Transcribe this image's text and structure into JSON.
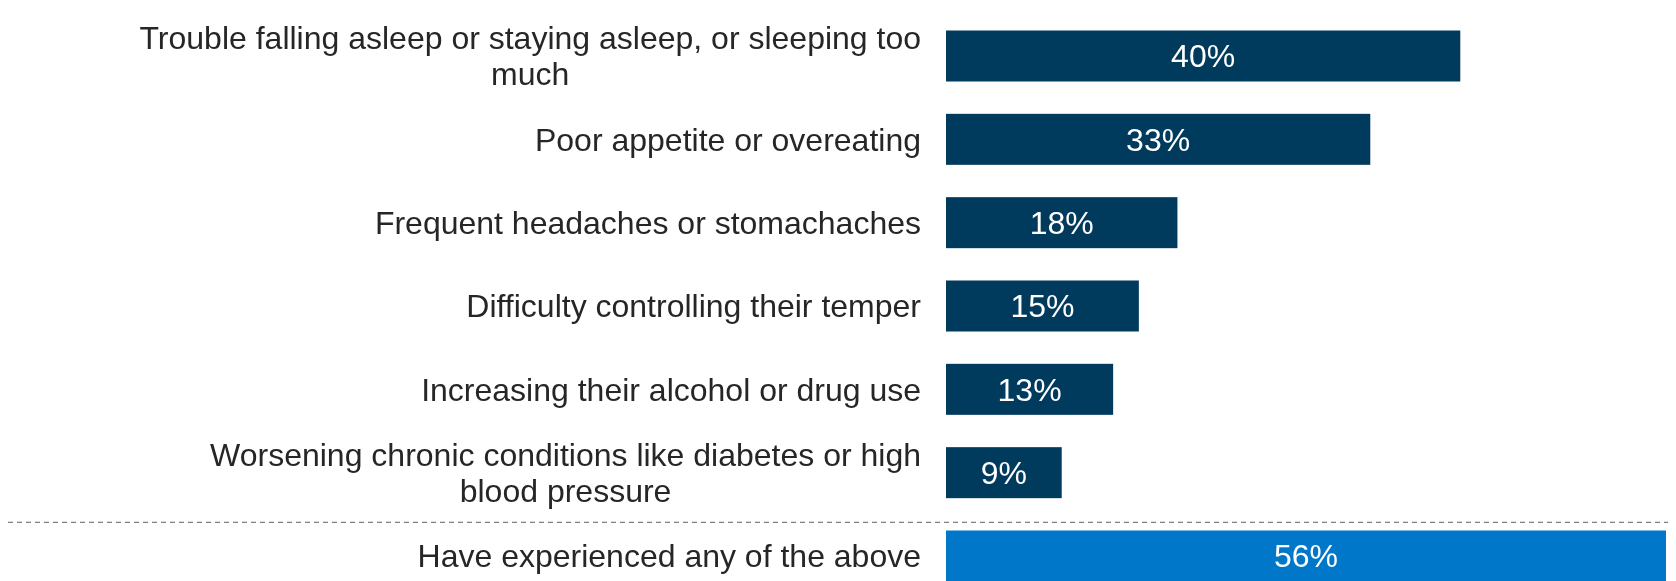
{
  "chart_data": {
    "type": "bar",
    "orientation": "horizontal",
    "relative": false,
    "categories": [
      "Trouble falling asleep or staying asleep, or sleeping too much",
      "Poor appetite or overeating",
      "Frequent headaches or stomachaches",
      "Difficulty controlling their temper",
      "Increasing their alcohol or drug use",
      "Worsening chronic conditions like diabetes or high blood pressure",
      "Have experienced any of the above"
    ],
    "values": [
      40,
      33,
      18,
      15,
      13,
      9,
      56
    ],
    "colors": [
      "#003a5d",
      "#003a5d",
      "#003a5d",
      "#003a5d",
      "#003a5d",
      "#003a5d",
      "#0077c8"
    ],
    "xlim": [
      0,
      56
    ],
    "tick_labels": "y",
    "value_labels": [
      "40%",
      "33%",
      "18%",
      "15%",
      "13%",
      "9%",
      "56%"
    ]
  }
}
